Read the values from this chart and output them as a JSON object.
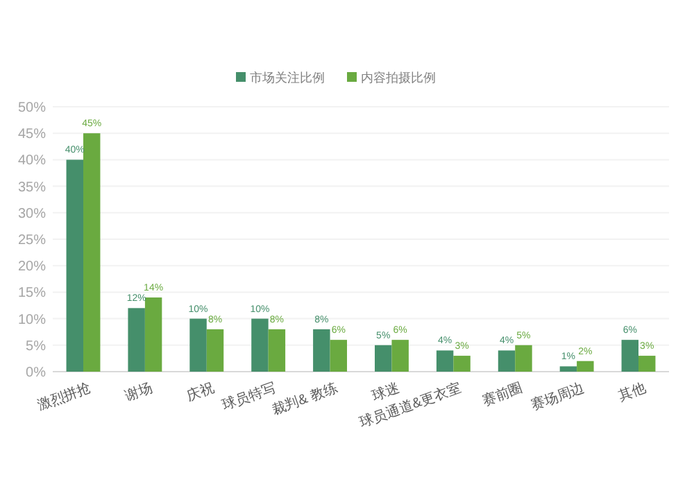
{
  "chart_data": {
    "type": "bar",
    "categories": [
      "激烈拼抢",
      "谢场",
      "庆祝",
      "球员特写",
      "裁判& 教练",
      "球迷",
      "球员通道&更衣室",
      "赛前圈",
      "赛场周边",
      "其他"
    ],
    "series": [
      {
        "name": "市场关注比例",
        "color": "#458f6b",
        "values": [
          40,
          12,
          10,
          10,
          8,
          5,
          4,
          4,
          1,
          6
        ],
        "value_labels": [
          "40%",
          "12%",
          "10%",
          "10%",
          "8%",
          "5%",
          "4%",
          "4%",
          "1%",
          "6%"
        ]
      },
      {
        "name": "内容拍摄比例",
        "color": "#6aaa40",
        "values": [
          45,
          14,
          8,
          8,
          6,
          6,
          3,
          5,
          2,
          3
        ],
        "value_labels": [
          "45%",
          "14%",
          "8%",
          "8%",
          "6%",
          "6%",
          "3%",
          "5%",
          "2%",
          "3%"
        ]
      }
    ],
    "ylim": [
      0,
      50
    ],
    "yticks": [
      {
        "value": 0,
        "label": "0%"
      },
      {
        "value": 5,
        "label": "5%"
      },
      {
        "value": 10,
        "label": "10%"
      },
      {
        "value": 15,
        "label": "15%"
      },
      {
        "value": 20,
        "label": "20%"
      },
      {
        "value": 25,
        "label": "25%"
      },
      {
        "value": 30,
        "label": "30%"
      },
      {
        "value": 35,
        "label": "35%"
      },
      {
        "value": 40,
        "label": "40%"
      },
      {
        "value": 45,
        "label": "45%"
      },
      {
        "value": 50,
        "label": "50%"
      }
    ],
    "grid": "y",
    "legend": "top"
  }
}
